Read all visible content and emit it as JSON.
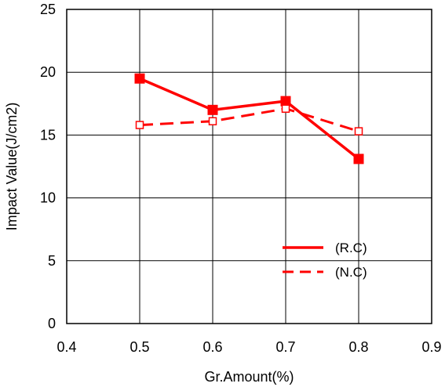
{
  "chart_data": {
    "type": "line",
    "title": "",
    "xlabel": "Gr.Amount(%)",
    "ylabel": "Impact Value(J/cm2)",
    "xlim": [
      0.4,
      0.9
    ],
    "ylim": [
      0,
      25
    ],
    "xticks": [
      "0.4",
      "0.5",
      "0.6",
      "0.7",
      "0.8",
      "0.9"
    ],
    "yticks": [
      "0",
      "5",
      "10",
      "15",
      "20",
      "25"
    ],
    "grid": true,
    "legend_position": "lower-right",
    "series": [
      {
        "name": "(R.C)",
        "x": [
          0.5,
          0.6,
          0.7,
          0.8
        ],
        "y": [
          19.5,
          17.0,
          17.7,
          13.1
        ],
        "color": "#ff0000",
        "line_style": "solid",
        "marker": "filled-square"
      },
      {
        "name": "(N.C)",
        "x": [
          0.5,
          0.6,
          0.7,
          0.8
        ],
        "y": [
          15.8,
          16.1,
          17.1,
          15.3
        ],
        "color": "#ff0000",
        "line_style": "dashed",
        "marker": "hollow-square"
      }
    ]
  }
}
